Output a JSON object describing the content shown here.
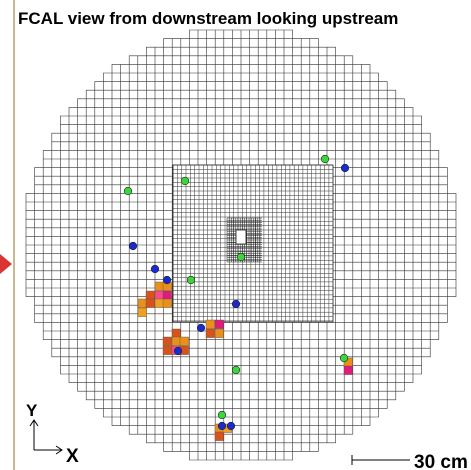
{
  "title": "FCAL view from downstream looking upstream",
  "axes": {
    "y": "Y",
    "x": "X"
  },
  "scale_label": "30 cm"
}
